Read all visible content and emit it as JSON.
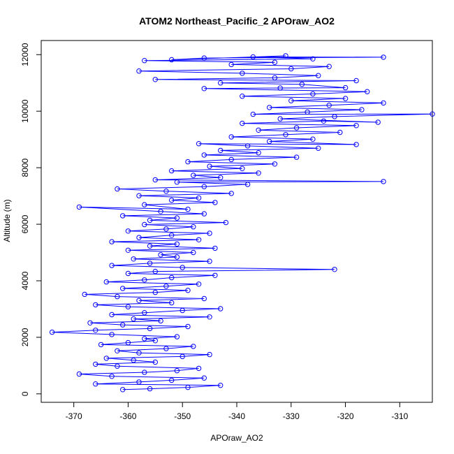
{
  "chart_data": {
    "type": "scatter",
    "title": "ATOM2 Northeast_Pacific_2 APOraw_AO2",
    "xlabel": "APOraw_AO2",
    "ylabel": "Altitude (m)",
    "xlim": [
      -376,
      -304
    ],
    "ylim": [
      -300,
      12500
    ],
    "xticks": [
      -370,
      -360,
      -350,
      -340,
      -330,
      -320,
      -310
    ],
    "xtick_labels": [
      "-370",
      "-360",
      "-350",
      "-340",
      "-330",
      "-320",
      "-310"
    ],
    "yticks": [
      0,
      2000,
      4000,
      6000,
      8000,
      10000,
      12000
    ],
    "ytick_labels": [
      "0",
      "2000",
      "4000",
      "6000",
      "8000",
      "10000",
      "12000"
    ],
    "grid": false,
    "marker": "open-circle",
    "connect_points": true,
    "colors": {
      "series": "#0000ff",
      "axes": "#000000"
    },
    "points": [
      [
        -361,
        150
      ],
      [
        -356,
        180
      ],
      [
        -349,
        230
      ],
      [
        -343,
        300
      ],
      [
        -366,
        350
      ],
      [
        -358,
        420
      ],
      [
        -352,
        480
      ],
      [
        -346,
        560
      ],
      [
        -363,
        620
      ],
      [
        -369,
        700
      ],
      [
        -357,
        760
      ],
      [
        -351,
        820
      ],
      [
        -347,
        900
      ],
      [
        -362,
        980
      ],
      [
        -366,
        1050
      ],
      [
        -355,
        1120
      ],
      [
        -359,
        1190
      ],
      [
        -364,
        1260
      ],
      [
        -350,
        1320
      ],
      [
        -345,
        1390
      ],
      [
        -358,
        1450
      ],
      [
        -362,
        1520
      ],
      [
        -353,
        1600
      ],
      [
        -348,
        1680
      ],
      [
        -365,
        1740
      ],
      [
        -360,
        1810
      ],
      [
        -355,
        1880
      ],
      [
        -357,
        1950
      ],
      [
        -351,
        2020
      ],
      [
        -363,
        2100
      ],
      [
        -374,
        2180
      ],
      [
        -366,
        2250
      ],
      [
        -356,
        2310
      ],
      [
        -349,
        2380
      ],
      [
        -361,
        2440
      ],
      [
        -367,
        2510
      ],
      [
        -354,
        2580
      ],
      [
        -359,
        2650
      ],
      [
        -345,
        2720
      ],
      [
        -363,
        2800
      ],
      [
        -357,
        2870
      ],
      [
        -350,
        2950
      ],
      [
        -343,
        3010
      ],
      [
        -360,
        3080
      ],
      [
        -366,
        3150
      ],
      [
        -352,
        3220
      ],
      [
        -358,
        3300
      ],
      [
        -346,
        3370
      ],
      [
        -362,
        3440
      ],
      [
        -368,
        3520
      ],
      [
        -355,
        3590
      ],
      [
        -349,
        3660
      ],
      [
        -361,
        3730
      ],
      [
        -353,
        3810
      ],
      [
        -347,
        3880
      ],
      [
        -364,
        3960
      ],
      [
        -357,
        4030
      ],
      [
        -352,
        4110
      ],
      [
        -344,
        4190
      ],
      [
        -360,
        4260
      ],
      [
        -355,
        4330
      ],
      [
        -322,
        4400
      ],
      [
        -350,
        4470
      ],
      [
        -363,
        4540
      ],
      [
        -356,
        4620
      ],
      [
        -345,
        4690
      ],
      [
        -359,
        4770
      ],
      [
        -351,
        4840
      ],
      [
        -354,
        4920
      ],
      [
        -348,
        5000
      ],
      [
        -360,
        5080
      ],
      [
        -344,
        5150
      ],
      [
        -356,
        5230
      ],
      [
        -351,
        5300
      ],
      [
        -363,
        5380
      ],
      [
        -347,
        5450
      ],
      [
        -358,
        5530
      ],
      [
        -352,
        5610
      ],
      [
        -345,
        5680
      ],
      [
        -360,
        5760
      ],
      [
        -353,
        5830
      ],
      [
        -348,
        5910
      ],
      [
        -357,
        5990
      ],
      [
        -342,
        6060
      ],
      [
        -356,
        6140
      ],
      [
        -351,
        6220
      ],
      [
        -361,
        6300
      ],
      [
        -346,
        6370
      ],
      [
        -354,
        6450
      ],
      [
        -369,
        6610
      ],
      [
        -349,
        6530
      ],
      [
        -357,
        6690
      ],
      [
        -344,
        6770
      ],
      [
        -352,
        6850
      ],
      [
        -347,
        6930
      ],
      [
        -358,
        7010
      ],
      [
        -341,
        7090
      ],
      [
        -353,
        7170
      ],
      [
        -362,
        7250
      ],
      [
        -346,
        7330
      ],
      [
        -338,
        7410
      ],
      [
        -351,
        7490
      ],
      [
        -313,
        7510
      ],
      [
        -355,
        7570
      ],
      [
        -343,
        7650
      ],
      [
        -348,
        7730
      ],
      [
        -336,
        7810
      ],
      [
        -352,
        7890
      ],
      [
        -339,
        7970
      ],
      [
        -345,
        8050
      ],
      [
        -333,
        8130
      ],
      [
        -349,
        8210
      ],
      [
        -341,
        8290
      ],
      [
        -329,
        8370
      ],
      [
        -346,
        8450
      ],
      [
        -336,
        8530
      ],
      [
        -343,
        8610
      ],
      [
        -325,
        8690
      ],
      [
        -338,
        8770
      ],
      [
        -347,
        8850
      ],
      [
        -318,
        8820
      ],
      [
        -334,
        8930
      ],
      [
        -326,
        9010
      ],
      [
        -341,
        9090
      ],
      [
        -331,
        9170
      ],
      [
        -321,
        9250
      ],
      [
        -336,
        9330
      ],
      [
        -329,
        9410
      ],
      [
        -318,
        9490
      ],
      [
        -339,
        9570
      ],
      [
        -324,
        9650
      ],
      [
        -314,
        9610
      ],
      [
        -332,
        9730
      ],
      [
        -322,
        9810
      ],
      [
        -304,
        9900
      ],
      [
        -337,
        9890
      ],
      [
        -327,
        9970
      ],
      [
        -317,
        10050
      ],
      [
        -334,
        10130
      ],
      [
        -323,
        10210
      ],
      [
        -313,
        10290
      ],
      [
        -330,
        10370
      ],
      [
        -320,
        10450
      ],
      [
        -339,
        10530
      ],
      [
        -326,
        10610
      ],
      [
        -316,
        10690
      ],
      [
        -346,
        10800
      ],
      [
        -332,
        10820
      ],
      [
        -320,
        10830
      ],
      [
        -328,
        10950
      ],
      [
        -343,
        11000
      ],
      [
        -318,
        11080
      ],
      [
        -355,
        11120
      ],
      [
        -333,
        11180
      ],
      [
        -325,
        11260
      ],
      [
        -339,
        11340
      ],
      [
        -358,
        11420
      ],
      [
        -330,
        11500
      ],
      [
        -323,
        11580
      ],
      [
        -341,
        11650
      ],
      [
        -333,
        11730
      ],
      [
        -357,
        11790
      ],
      [
        -326,
        11850
      ],
      [
        -337,
        11920
      ],
      [
        -313,
        11910
      ],
      [
        -346,
        11880
      ],
      [
        -352,
        11820
      ],
      [
        -331,
        11960
      ]
    ]
  }
}
